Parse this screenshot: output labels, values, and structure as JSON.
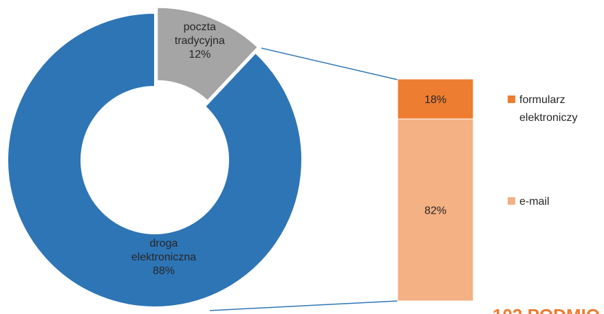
{
  "chart_data": [
    {
      "type": "donut",
      "categories": [
        "poczta tradycyjna",
        "droga elektroniczna"
      ],
      "values": [
        12,
        88
      ],
      "value_labels": [
        "12%",
        "88%"
      ],
      "colors": [
        "#a5a5a5",
        "#2e75b6"
      ]
    },
    {
      "type": "stacked_bar",
      "series": [
        {
          "name": "formularz elektroniczy",
          "color": "#ed7d31",
          "values": [
            18
          ],
          "value_labels": [
            "18%"
          ]
        },
        {
          "name": "e-mail",
          "color": "#f4b183",
          "values": [
            82
          ],
          "value_labels": [
            "82%"
          ]
        }
      ],
      "annotation": "102 PODMIO"
    }
  ]
}
